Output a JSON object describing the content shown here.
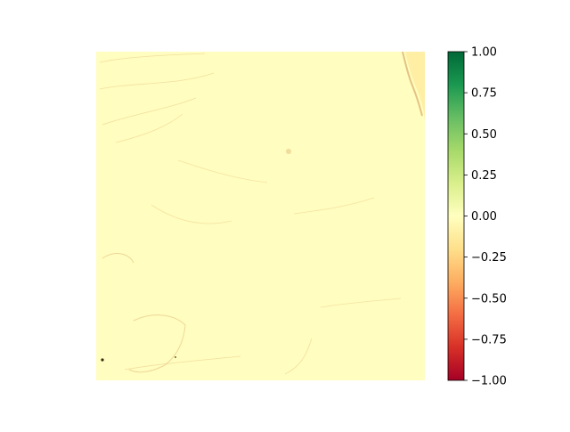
{
  "chart_data": {
    "type": "heatmap",
    "title": "",
    "xlabel": "",
    "ylabel": "",
    "axes_visible": false,
    "colormap": "RdYlGn",
    "value_range": [
      -1.0,
      1.0
    ],
    "dominant_value": -0.03,
    "colorbar": {
      "orientation": "vertical",
      "ticks": [
        1.0,
        0.75,
        0.5,
        0.25,
        0.0,
        -0.25,
        -0.5,
        -0.75,
        -1.0
      ],
      "tick_labels": [
        "1.00",
        "0.75",
        "0.50",
        "0.25",
        "0.00",
        "−0.25",
        "−0.50",
        "−0.75",
        "−1.00"
      ]
    },
    "colors": {
      "background": "#fffdbf",
      "feature_light": "#feeda1",
      "feature_dark": "#d9a96a",
      "speck": "#3a2a10"
    },
    "colormap_stops": [
      {
        "value": -1.0,
        "color": "#a50026"
      },
      {
        "value": -0.8,
        "color": "#d73027"
      },
      {
        "value": -0.6,
        "color": "#f46d43"
      },
      {
        "value": -0.4,
        "color": "#fdae61"
      },
      {
        "value": -0.2,
        "color": "#fee08b"
      },
      {
        "value": 0.0,
        "color": "#ffffbf"
      },
      {
        "value": 0.2,
        "color": "#d9ef8b"
      },
      {
        "value": 0.4,
        "color": "#a6d96a"
      },
      {
        "value": 0.6,
        "color": "#66bd63"
      },
      {
        "value": 0.8,
        "color": "#1a9850"
      },
      {
        "value": 1.0,
        "color": "#006837"
      }
    ]
  }
}
